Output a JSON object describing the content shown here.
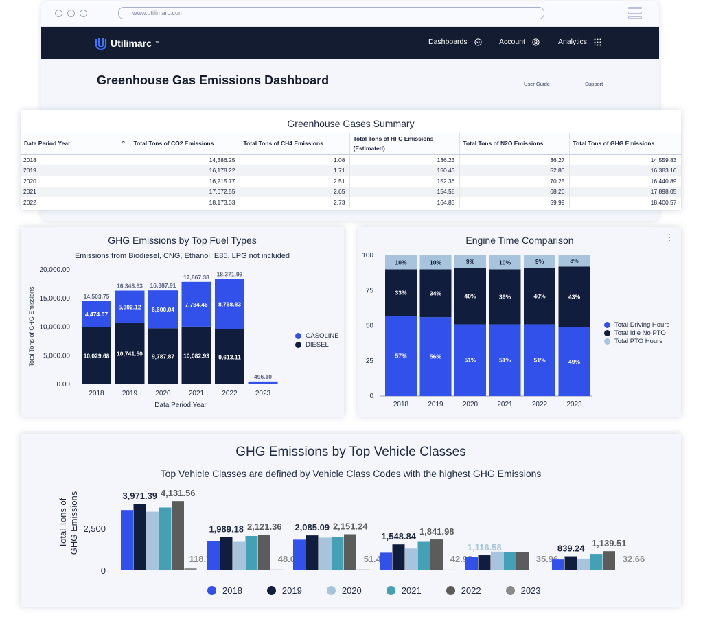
{
  "browser": {
    "url": "www.utilimarc.com"
  },
  "nav": {
    "brand": "Utilimarc",
    "brand_mark": "™",
    "dashboards": "Dashboards",
    "account": "Account",
    "analytics": "Analytics"
  },
  "page": {
    "title": "Greenhouse Gas Emissions Dashboard",
    "user_guide": "User Guide",
    "support": "Support"
  },
  "summary": {
    "title": "Greenhouse Gases Summary",
    "headers": [
      "Data Period Year",
      "Total Tons of CO2 Emissions",
      "Total Tons of CH4 Emissions",
      "Total Tons of HFC Emissions (Estimated)",
      "Total Tons of N2O Emissions",
      "Total Tons of GHG Emissions"
    ],
    "rows": [
      [
        "2018",
        "14,386.25",
        "1.08",
        "136.23",
        "36.27",
        "14,559.83"
      ],
      [
        "2019",
        "16,178.22",
        "1.71",
        "150.43",
        "52.80",
        "16,383.16"
      ],
      [
        "2020",
        "16,215.77",
        "2.51",
        "152.36",
        "70.25",
        "16,440.89"
      ],
      [
        "2021",
        "17,672.55",
        "2.65",
        "154.58",
        "68.26",
        "17,898.05"
      ],
      [
        "2022",
        "18,173.03",
        "2.73",
        "164.83",
        "59.99",
        "18,400.57"
      ]
    ]
  },
  "chart_data": [
    {
      "type": "bar",
      "stacked": true,
      "title": "GHG Emissions by Top Fuel Types",
      "subtitle": "Emissions from Biodiesel, CNG, Ethanol, E85, LPG not included",
      "xlabel": "Data Period Year",
      "ylabel": "Total Tons of GHG Emissions",
      "ylim": [
        0,
        20000
      ],
      "yticks": [
        "0.00",
        "5,000.00",
        "10,000.00",
        "15,000.00",
        "20,000.00"
      ],
      "categories": [
        "2018",
        "2019",
        "2020",
        "2021",
        "2022",
        "2023"
      ],
      "totals": [
        "14,503.75",
        "16,343.63",
        "16,387.91",
        "17,867.38",
        "18,371.93",
        "496.10"
      ],
      "series": [
        {
          "name": "DIESEL",
          "color": "#111d3c",
          "values": [
            10029.68,
            10741.5,
            9787.87,
            10082.93,
            9613.11,
            0
          ],
          "labels": [
            "10,029.68",
            "10,741.50",
            "9,787.87",
            "10,082.93",
            "9,613.11",
            ""
          ]
        },
        {
          "name": "GASOLINE",
          "color": "#3251ea",
          "values": [
            4474.07,
            5602.12,
            6600.04,
            7784.46,
            8758.83,
            496.1
          ],
          "labels": [
            "4,474.07",
            "5,602.12",
            "6,600.04",
            "7,784.46",
            "8,758.83",
            ""
          ]
        }
      ],
      "legend": "right"
    },
    {
      "type": "bar",
      "stacked": true,
      "title": "Engine Time Comparison",
      "ylim": [
        0,
        100
      ],
      "yticks": [
        "0",
        "25",
        "50",
        "75",
        "100"
      ],
      "categories": [
        "2018",
        "2019",
        "2020",
        "2021",
        "2022",
        "2023"
      ],
      "series": [
        {
          "name": "Total Driving Hours",
          "color": "#3251ea",
          "values": [
            57,
            56,
            51,
            51,
            51,
            49
          ]
        },
        {
          "name": "Total Idle No PTO",
          "color": "#111d3c",
          "values": [
            33,
            34,
            40,
            39,
            40,
            43
          ]
        },
        {
          "name": "Total PTO Hours",
          "color": "#a8c4dd",
          "values": [
            10,
            10,
            9,
            10,
            9,
            8
          ]
        }
      ],
      "legend": "right"
    },
    {
      "type": "bar",
      "title": "GHG Emissions by Top Vehicle Classes",
      "subtitle": "Top Vehicle Classes are defined by Vehicle Class Codes with the highest GHG Emissions",
      "ylabel": "Total Tons of GHG Emissions",
      "yticks": [
        "0",
        "2,500"
      ],
      "ylim": [
        0,
        4500
      ],
      "groups": 6,
      "series": [
        {
          "name": "2018",
          "color": "#3251ea",
          "values": [
            3600,
            1750,
            1830,
            1050,
            800,
            650
          ]
        },
        {
          "name": "2019",
          "color": "#111d3c",
          "values": [
            3971.39,
            1989.18,
            2085.09,
            1548.84,
            900,
            839.24
          ]
        },
        {
          "name": "2020",
          "color": "#a8c4dd",
          "values": [
            3500,
            1700,
            1950,
            1300,
            1116.58,
            700
          ]
        },
        {
          "name": "2021",
          "color": "#44a0b5",
          "values": [
            3750,
            2050,
            2000,
            1700,
            1100,
            980
          ]
        },
        {
          "name": "2022",
          "color": "#5c5c5c",
          "values": [
            4131.56,
            2121.36,
            2151.24,
            1841.98,
            1100,
            1139.51
          ]
        },
        {
          "name": "2023",
          "color": "#8a8a8a",
          "values": [
            118.78,
            48.04,
            51.4,
            42.93,
            35.96,
            32.66
          ]
        }
      ],
      "labels": [
        [
          "3,971.39",
          "4,131.56",
          "118.78"
        ],
        [
          "1,989.18",
          "2,121.36",
          "48.04"
        ],
        [
          "2,085.09",
          "2,151.24",
          "51.40"
        ],
        [
          "1,548.84",
          "1,841.98",
          "42.93"
        ],
        [
          "1,116.58",
          "",
          "35.96"
        ],
        [
          "839.24",
          "1,139.51",
          "32.66"
        ]
      ],
      "legend": "bottom"
    }
  ]
}
